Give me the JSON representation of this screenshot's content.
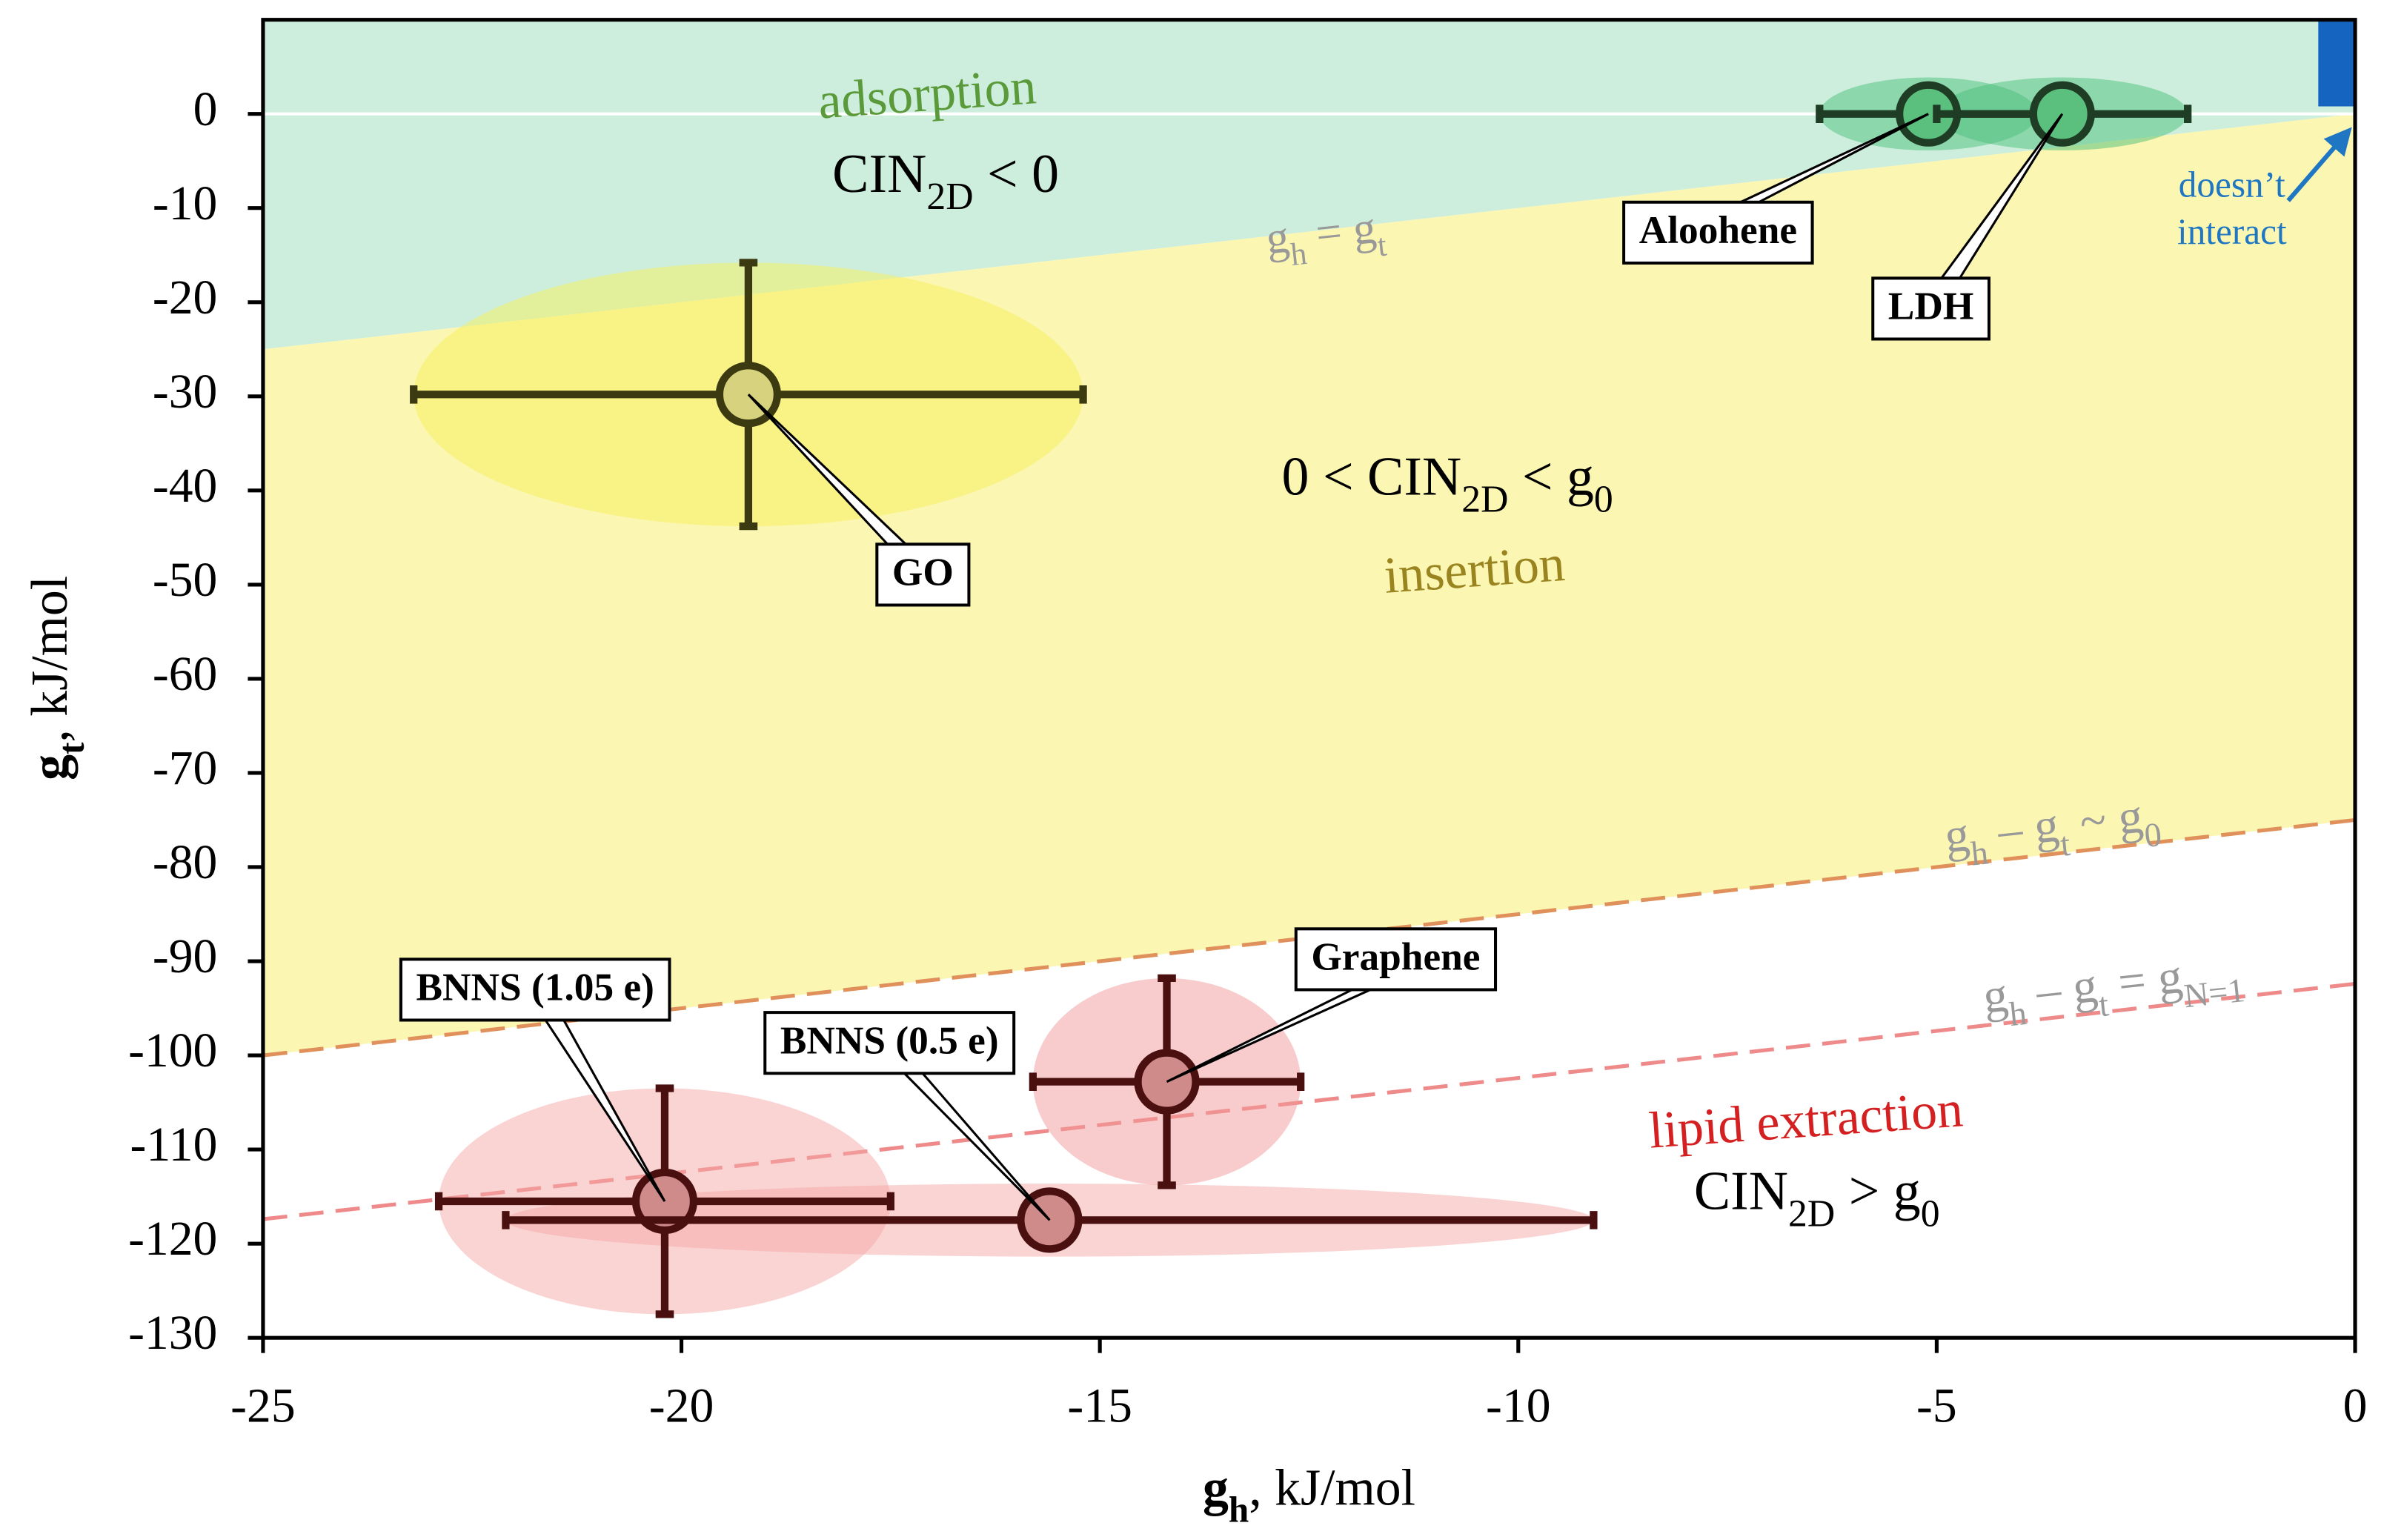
{
  "chart_data": {
    "type": "scatter",
    "x_label": [
      "g",
      "h",
      ", kJ/mol"
    ],
    "y_label": [
      "g",
      "t",
      ", kJ/mol"
    ],
    "xlim": [
      -25,
      0
    ],
    "ylim": [
      -130,
      10
    ],
    "xticks": [
      -25,
      -20,
      -15,
      -10,
      -5,
      0
    ],
    "yticks": [
      0,
      -10,
      -20,
      -30,
      -40,
      -50,
      -60,
      -70,
      -80,
      -90,
      -100,
      -110,
      -120,
      -130
    ],
    "series": [
      {
        "name": "Aloohene",
        "color": "#5bbf7e",
        "halo_color": "#4cbf7a",
        "bar_color": "#1f3d24",
        "x": [
          -5.1
        ],
        "values": [
          0
        ],
        "xerr": [
          1.3
        ],
        "yerr": [
          0
        ]
      },
      {
        "name": "LDH",
        "color": "#5bbf7e",
        "halo_color": "#4cbf7a",
        "bar_color": "#1f3d24",
        "x": [
          -3.5
        ],
        "values": [
          0
        ],
        "xerr": [
          1.5
        ],
        "yerr": [
          0
        ]
      },
      {
        "name": "GO",
        "color": "#d6d27e",
        "halo_color": "#f7f05a",
        "bar_color": "#3b3a10",
        "x": [
          -19.2
        ],
        "values": [
          -29.8
        ],
        "xerr": [
          4.0
        ],
        "yerr": [
          14.0
        ]
      },
      {
        "name": "Graphene",
        "color": "#cf8a8a",
        "halo_color": "#f29a9a",
        "bar_color": "#4a1010",
        "x": [
          -14.2
        ],
        "values": [
          -102.8
        ],
        "xerr": [
          1.6
        ],
        "yerr": [
          11.0
        ]
      },
      {
        "name": "BNNS (1.05 e)",
        "color": "#cf8a8a",
        "halo_color": "#f5a8a8",
        "bar_color": "#4a1010",
        "x": [
          -20.2
        ],
        "values": [
          -115.5
        ],
        "xerr": [
          2.7
        ],
        "yerr": [
          12.0
        ]
      },
      {
        "name": "BNNS (0.5 e)",
        "color": "#cf8a8a",
        "halo_color": "#f5a8a8",
        "bar_color": "#4a1010",
        "x": [
          -15.6
        ],
        "values": [
          -117.5
        ],
        "xerr": [
          6.5
        ],
        "yerr": [
          1.5
        ]
      }
    ],
    "regions": [
      {
        "color": "#cdeedc",
        "lower_intercept": 0
      },
      {
        "color": "#fbf6b2",
        "lower_intercept": -75,
        "upper_intercept": 0
      }
    ],
    "lines": [
      {
        "intercept": -75,
        "color": "#e0905a"
      },
      {
        "intercept": -92.4,
        "color": "#ee8a8a"
      }
    ],
    "no_interaction": {
      "x": [
        -0.44,
        0
      ],
      "y": [
        0.8,
        10
      ],
      "color": "#1565c0"
    },
    "annotations": [
      {
        "parts": [
          "adsorption"
        ],
        "color": "#5a9a3a"
      },
      {
        "parts": [
          "CIN",
          "2D",
          " < 0"
        ],
        "color": "#000000"
      },
      {
        "parts": [
          "g",
          "h",
          " = g",
          "t"
        ],
        "color": "#999999"
      },
      {
        "parts": [
          "0 < CIN",
          "2D",
          " < g",
          "0"
        ],
        "color": "#000000"
      },
      {
        "parts": [
          "insertion"
        ],
        "color": "#9a8420"
      },
      {
        "parts": [
          "g",
          "h",
          " – g",
          "t",
          " ~ g",
          "0"
        ],
        "color": "#999999"
      },
      {
        "parts": [
          "g",
          "h",
          " – g",
          "t",
          " = g",
          "N=1"
        ],
        "color": "#999999"
      },
      {
        "parts": [
          "lipid extraction"
        ],
        "color": "#d42020"
      },
      {
        "parts": [
          "CIN",
          "2D",
          " > g",
          "0"
        ],
        "color": "#000000"
      },
      {
        "parts": [
          "doesn’t"
        ],
        "color": "#1f77c4"
      },
      {
        "parts": [
          "interact"
        ],
        "color": "#1f77c4"
      }
    ]
  }
}
